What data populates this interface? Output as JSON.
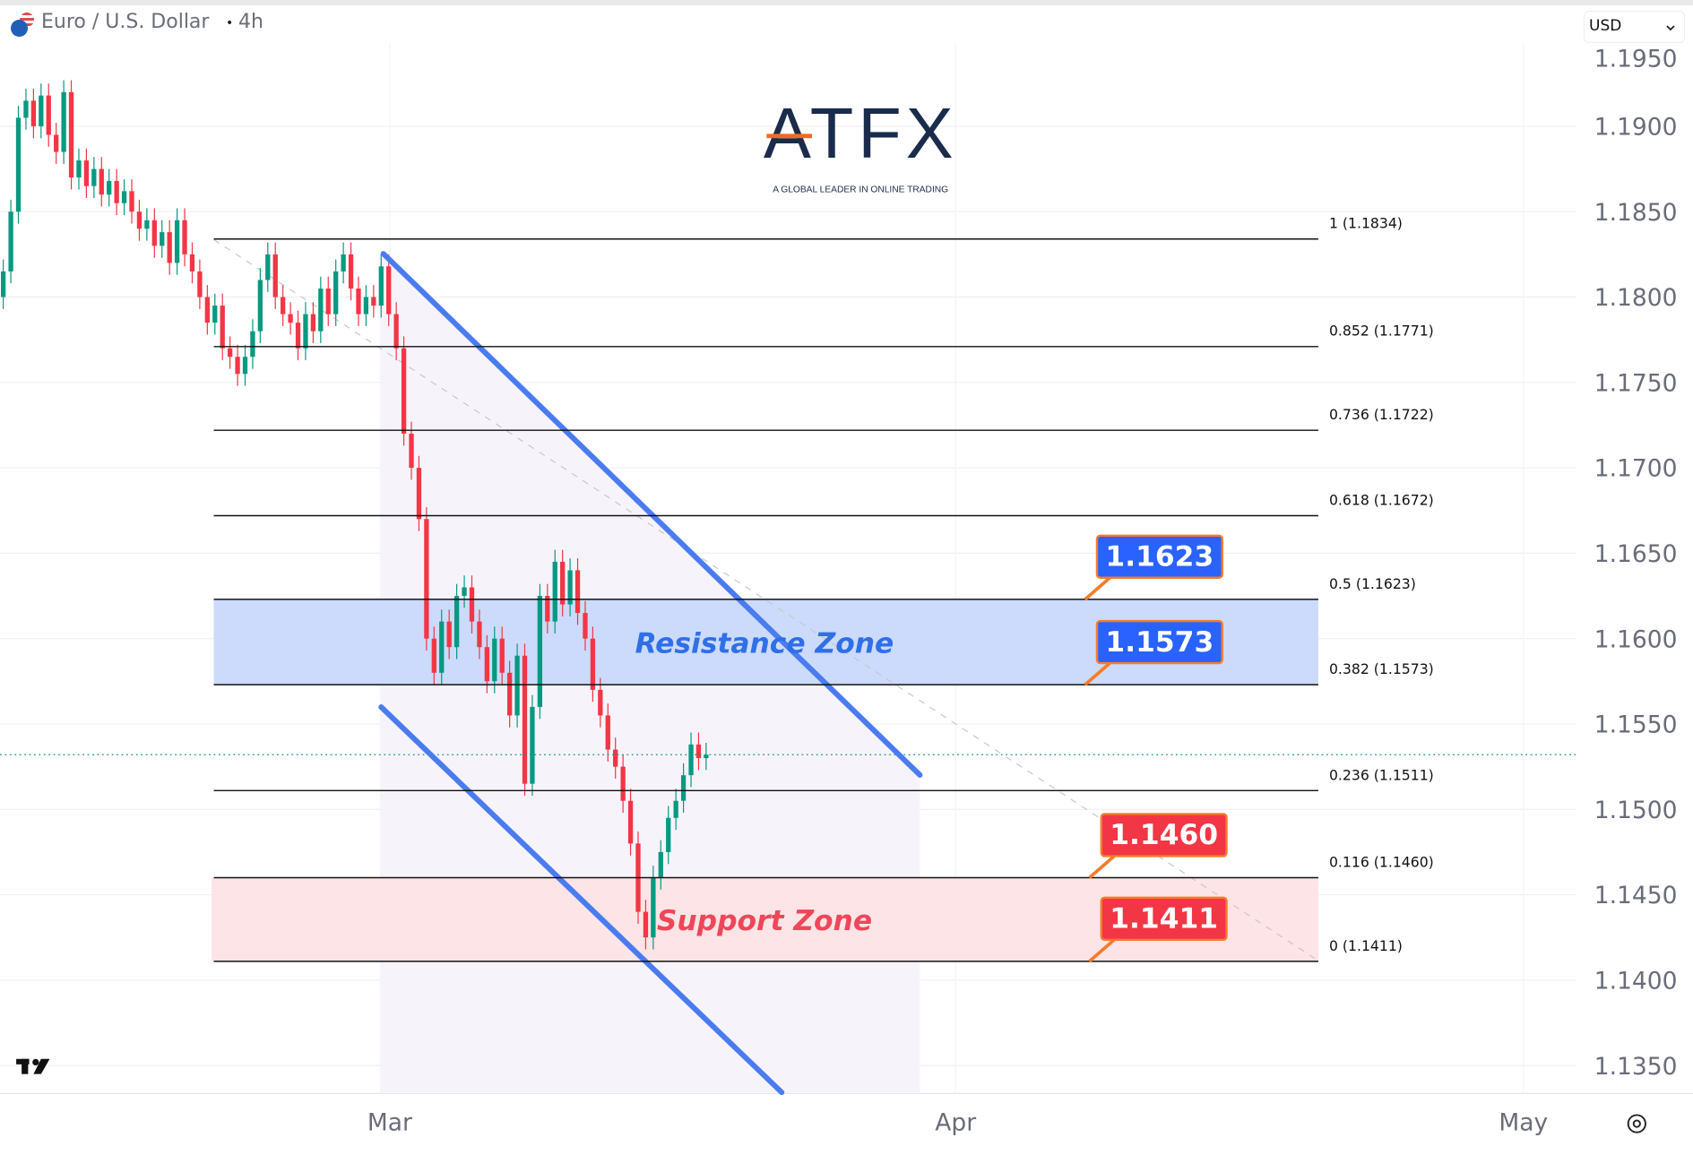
{
  "header": {
    "symbol_title": "Euro / U.S. Dollar",
    "separator": "•",
    "interval": "4h",
    "currency_select": "USD",
    "icon": "eur-usd-flag-icon"
  },
  "logo": {
    "brand": "ATFX",
    "tagline": "A GLOBAL LEADER IN ONLINE TRADING"
  },
  "colors": {
    "up": "#089981",
    "down": "#f23645",
    "channel": "#4a7cf0",
    "resistance_fill": "#c9d8fb",
    "support_fill": "#fde3e5",
    "callout_blue": "#2962ff",
    "callout_red": "#f23645",
    "callout_border": "#f57c2b"
  },
  "chart_data": {
    "type": "candlestick",
    "title": "",
    "y_axis": {
      "range": [
        1.1325,
        1.1962
      ],
      "ticks": [
        "1.1950",
        "1.1900",
        "1.1850",
        "1.1800",
        "1.1750",
        "1.1700",
        "1.1650",
        "1.1600",
        "1.1550",
        "1.1500",
        "1.1450",
        "1.1400",
        "1.1350"
      ],
      "side": "right"
    },
    "x_axis": {
      "ticks": [
        "Mar",
        "Apr",
        "May"
      ]
    },
    "grid": true,
    "closes": [
      1.1815,
      1.185,
      1.1905,
      1.1915,
      1.19,
      1.1918,
      1.1895,
      1.1885,
      1.192,
      1.187,
      1.188,
      1.1865,
      1.1875,
      1.186,
      1.1868,
      1.1855,
      1.1862,
      1.185,
      1.184,
      1.1845,
      1.183,
      1.1838,
      1.182,
      1.1845,
      1.1825,
      1.1815,
      1.18,
      1.1785,
      1.1795,
      1.177,
      1.1765,
      1.1755,
      1.1765,
      1.178,
      1.181,
      1.1825,
      1.18,
      1.179,
      1.1785,
      1.177,
      1.179,
      1.178,
      1.1805,
      1.179,
      1.1815,
      1.1825,
      1.1805,
      1.179,
      1.18,
      1.1795,
      1.1818,
      1.179,
      1.177,
      1.172,
      1.17,
      1.167,
      1.16,
      1.158,
      1.161,
      1.1595,
      1.1625,
      1.163,
      1.161,
      1.1595,
      1.1575,
      1.16,
      1.158,
      1.1555,
      1.159,
      1.1515,
      1.156,
      1.1625,
      1.161,
      1.1645,
      1.162,
      1.164,
      1.1615,
      1.16,
      1.157,
      1.1555,
      1.1535,
      1.1525,
      1.1505,
      1.148,
      1.144,
      1.1425,
      1.146,
      1.1475,
      1.1495,
      1.1505,
      1.152,
      1.1538,
      1.153,
      1.1532
    ],
    "current_price": 1.1532,
    "fibonacci": [
      {
        "label": "1 (1.1834)",
        "price": 1.1834
      },
      {
        "label": "0.852 (1.1771)",
        "price": 1.1771
      },
      {
        "label": "0.736 (1.1722)",
        "price": 1.1722
      },
      {
        "label": "0.618 (1.1672)",
        "price": 1.1672
      },
      {
        "label": "0.5 (1.1623)",
        "price": 1.1623
      },
      {
        "label": "0.382 (1.1573)",
        "price": 1.1573
      },
      {
        "label": "0.236 (1.1511)",
        "price": 1.1511
      },
      {
        "label": "0.116 (1.1460)",
        "price": 1.146
      },
      {
        "label": "0 (1.1411)",
        "price": 1.1411
      }
    ],
    "zones": [
      {
        "label": "Resistance Zone",
        "from": 1.1573,
        "to": 1.1623,
        "color": "#c9d8fb",
        "text_color": "#2f6fe8"
      },
      {
        "label": "Support Zone",
        "from": 1.1411,
        "to": 1.146,
        "color": "#fde3e5",
        "text_color": "#f0465a"
      }
    ],
    "callouts": [
      {
        "text": "1.1623",
        "price": 1.1623,
        "color": "#2962ff"
      },
      {
        "text": "1.1573",
        "price": 1.1573,
        "color": "#2962ff"
      },
      {
        "text": "1.1460",
        "price": 1.146,
        "color": "#f23645"
      },
      {
        "text": "1.1411",
        "price": 1.1411,
        "color": "#f23645"
      }
    ]
  }
}
